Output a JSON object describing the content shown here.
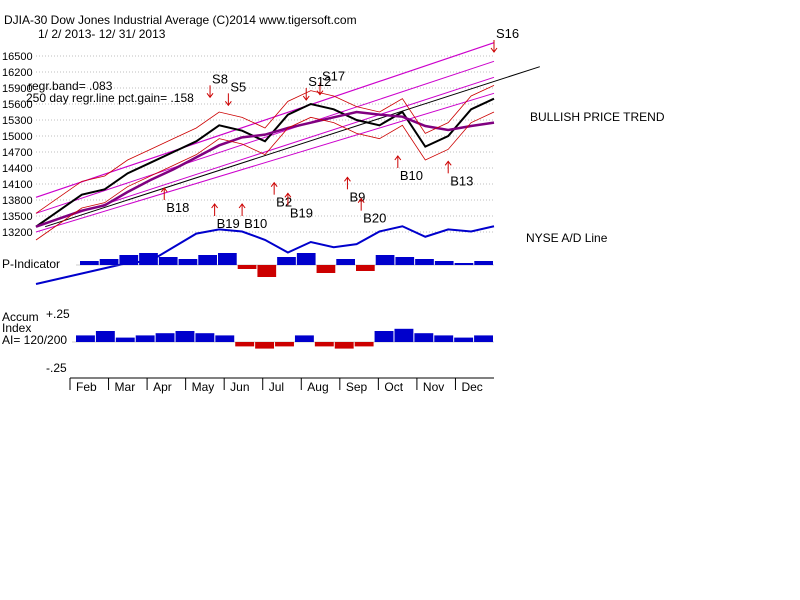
{
  "header": {
    "line1": "DJIA-30  Dow Jones Industrial Average   (C)2014 www.tigersoft.com",
    "line2": "1/ 2/ 2013- 12/ 31/ 2013",
    "regr_band": "regr.band= .083",
    "regr_gain": "250 day regr.line pct.gain= .158"
  },
  "annotations": {
    "trend": "BULLISH PRICE TREND",
    "ad_line": "NYSE A/D Line",
    "p_indicator": "P-Indicator",
    "accum_1": "Accum",
    "accum_2": "Index",
    "accum_3": "AI= 120/200",
    "accum_top": "+.25",
    "accum_bottom": "-.25"
  },
  "colors": {
    "price": "#000000",
    "band": "#cc00cc",
    "ma": "#cc0000",
    "trend_ma": "#800080",
    "ad": "#0000cc",
    "positive_bars": "#0000cc",
    "negative_bars": "#cc0000",
    "grid": "#808080"
  },
  "chart_data": {
    "type": "line",
    "title": "DJIA-30 Dow Jones Industrial Average",
    "period": "1/2/2013 - 12/31/2013",
    "x_months": [
      "Feb",
      "Mar",
      "Apr",
      "May",
      "Jun",
      "Jul",
      "Aug",
      "Sep",
      "Oct",
      "Nov",
      "Dec"
    ],
    "y_ticks": [
      16500,
      16200,
      15900,
      15600,
      15300,
      15000,
      14700,
      14400,
      14100,
      13800,
      13500,
      13200
    ],
    "ylim": [
      13200,
      16800
    ],
    "grid": true,
    "price_series": {
      "x": [
        0,
        0.05,
        0.1,
        0.15,
        0.2,
        0.25,
        0.3,
        0.35,
        0.4,
        0.45,
        0.5,
        0.55,
        0.6,
        0.65,
        0.7,
        0.75,
        0.8,
        0.85,
        0.9,
        0.95,
        1.0
      ],
      "values": [
        13300,
        13600,
        13900,
        14000,
        14300,
        14500,
        14700,
        14900,
        15200,
        15100,
        14900,
        15400,
        15600,
        15500,
        15300,
        15200,
        15450,
        14800,
        15000,
        15500,
        15700
      ]
    },
    "signals": [
      {
        "label": "S8",
        "type": "sell",
        "x": 0.38,
        "y": 15650
      },
      {
        "label": "S5",
        "type": "sell",
        "x": 0.42,
        "y": 15500
      },
      {
        "label": "S17",
        "type": "sell",
        "x": 0.62,
        "y": 15700
      },
      {
        "label": "S12",
        "type": "sell",
        "x": 0.59,
        "y": 15600
      },
      {
        "label": "S16",
        "type": "sell",
        "x": 1.0,
        "y": 16500
      },
      {
        "label": "B18",
        "type": "buy",
        "x": 0.28,
        "y": 14100
      },
      {
        "label": "B19",
        "type": "buy",
        "x": 0.39,
        "y": 13800
      },
      {
        "label": "B10",
        "type": "buy",
        "x": 0.45,
        "y": 13800
      },
      {
        "label": "B2",
        "type": "buy",
        "x": 0.52,
        "y": 14200
      },
      {
        "label": "B19",
        "type": "buy",
        "x": 0.55,
        "y": 14000
      },
      {
        "label": "B9",
        "type": "buy",
        "x": 0.68,
        "y": 14300
      },
      {
        "label": "B20",
        "type": "buy",
        "x": 0.71,
        "y": 13900
      },
      {
        "label": "B10",
        "type": "buy",
        "x": 0.79,
        "y": 14700
      },
      {
        "label": "B13",
        "type": "buy",
        "x": 0.9,
        "y": 14600
      }
    ],
    "ad_line": [
      0.2,
      0.25,
      0.3,
      0.35,
      0.4,
      0.42,
      0.55,
      0.68,
      0.72,
      0.7,
      0.62,
      0.5,
      0.6,
      0.55,
      0.58,
      0.7,
      0.75,
      0.65,
      0.72,
      0.7,
      0.75
    ],
    "p_indicator": [
      0.2,
      0.3,
      0.5,
      0.6,
      0.4,
      0.3,
      0.5,
      0.6,
      -0.2,
      -0.6,
      0.4,
      0.6,
      -0.4,
      0.3,
      -0.3,
      0.5,
      0.4,
      0.3,
      0.2,
      0.1,
      0.2
    ],
    "accum_index": [
      0.3,
      0.5,
      0.2,
      0.3,
      0.4,
      0.5,
      0.4,
      0.3,
      -0.2,
      -0.3,
      -0.2,
      0.3,
      -0.2,
      -0.3,
      -0.2,
      0.5,
      0.6,
      0.4,
      0.3,
      0.2,
      0.3
    ]
  }
}
